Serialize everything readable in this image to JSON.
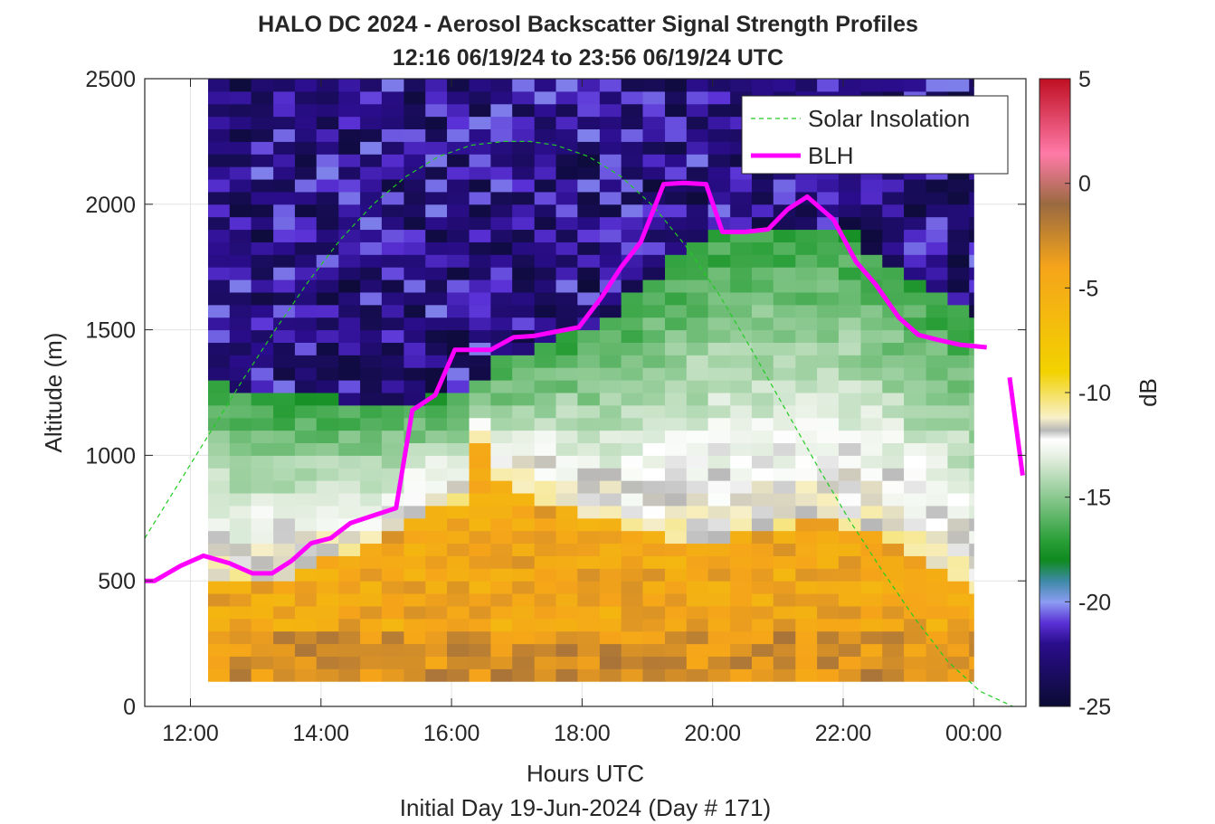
{
  "chart_data": {
    "type": "heatmap",
    "title": "HALO DC 2024 - Aerosol Backscatter Signal Strength Profiles",
    "subtitle": "12:16 06/19/24 to 23:56 06/19/24  UTC",
    "xlabel": "Hours UTC",
    "footer": "Initial Day 19-Jun-2024 (Day # 171)",
    "ylabel": "Altitude (m)",
    "colorbar_label": "dB",
    "xlim": [
      11.3,
      24.8
    ],
    "ylim": [
      0,
      2500
    ],
    "x_ticks": [
      12,
      14,
      16,
      18,
      20,
      22,
      24
    ],
    "x_tick_labels": [
      "12:00",
      "14:00",
      "16:00",
      "18:00",
      "20:00",
      "22:00",
      "00:00"
    ],
    "y_ticks": [
      0,
      500,
      1000,
      1500,
      2000,
      2500
    ],
    "y_tick_labels": [
      "0",
      "500",
      "1000",
      "1500",
      "2000",
      "2500"
    ],
    "clim": [
      -25,
      5
    ],
    "colorbar_ticks": [
      5,
      0,
      -5,
      -10,
      -15,
      -20,
      -25
    ],
    "colorbar_tick_labels": [
      "5",
      "0",
      "-5",
      "-10",
      "-15",
      "-20",
      "-25"
    ],
    "grid": true,
    "legend_position": "top-right",
    "legend": [
      {
        "label": "Solar Insolation",
        "color": "#22cc22",
        "style": "dashed"
      },
      {
        "label": "BLH",
        "color": "#ff00ff",
        "style": "solid"
      }
    ],
    "backscatter_profiles": {
      "x_start": 12.27,
      "x_end": 24.0,
      "y_start": 100,
      "y_end": 2500,
      "columns": [
        {
          "x": 12.27,
          "blh": 500,
          "top": 1300
        },
        {
          "x": 12.6,
          "blh": 480,
          "top": 1270
        },
        {
          "x": 12.93,
          "blh": 500,
          "top": 1240
        },
        {
          "x": 13.27,
          "blh": 520,
          "top": 1240
        },
        {
          "x": 13.6,
          "blh": 560,
          "top": 1230
        },
        {
          "x": 13.93,
          "blh": 590,
          "top": 1230
        },
        {
          "x": 14.27,
          "blh": 620,
          "top": 1220
        },
        {
          "x": 14.6,
          "blh": 650,
          "top": 1220
        },
        {
          "x": 14.93,
          "blh": 700,
          "top": 1220
        },
        {
          "x": 15.27,
          "blh": 760,
          "top": 1220
        },
        {
          "x": 15.6,
          "blh": 800,
          "top": 1230
        },
        {
          "x": 15.93,
          "blh": 820,
          "top": 1250
        },
        {
          "x": 16.27,
          "blh": 1050,
          "top": 1320
        },
        {
          "x": 16.6,
          "blh": 880,
          "top": 1380
        },
        {
          "x": 16.93,
          "blh": 860,
          "top": 1420
        },
        {
          "x": 17.27,
          "blh": 820,
          "top": 1460
        },
        {
          "x": 17.6,
          "blh": 800,
          "top": 1480
        },
        {
          "x": 17.93,
          "blh": 760,
          "top": 1500
        },
        {
          "x": 18.27,
          "blh": 730,
          "top": 1560
        },
        {
          "x": 18.6,
          "blh": 700,
          "top": 1640
        },
        {
          "x": 18.93,
          "blh": 680,
          "top": 1720
        },
        {
          "x": 19.27,
          "blh": 670,
          "top": 1800
        },
        {
          "x": 19.6,
          "blh": 660,
          "top": 1850
        },
        {
          "x": 19.93,
          "blh": 660,
          "top": 1890
        },
        {
          "x": 20.27,
          "blh": 680,
          "top": 1900
        },
        {
          "x": 20.6,
          "blh": 700,
          "top": 1900
        },
        {
          "x": 20.93,
          "blh": 720,
          "top": 1900
        },
        {
          "x": 21.27,
          "blh": 730,
          "top": 1900
        },
        {
          "x": 21.6,
          "blh": 740,
          "top": 1900
        },
        {
          "x": 21.93,
          "blh": 720,
          "top": 1880
        },
        {
          "x": 22.27,
          "blh": 700,
          "top": 1820
        },
        {
          "x": 22.6,
          "blh": 660,
          "top": 1750
        },
        {
          "x": 22.93,
          "blh": 600,
          "top": 1700
        },
        {
          "x": 23.27,
          "blh": 540,
          "top": 1650
        },
        {
          "x": 23.6,
          "blh": 480,
          "top": 1600
        },
        {
          "x": 23.93,
          "blh": 430,
          "top": 1560
        }
      ]
    },
    "series": [
      {
        "name": "Solar Insolation",
        "type": "line",
        "x": [
          11.3,
          11.8,
          12.3,
          12.8,
          13.3,
          13.8,
          14.3,
          14.8,
          15.3,
          15.8,
          16.3,
          16.8,
          17.2,
          17.6,
          18.1,
          18.6,
          19.1,
          19.6,
          20.1,
          20.6,
          21.1,
          21.6,
          22.1,
          22.6,
          23.1,
          23.6,
          24.1,
          24.6
        ],
        "y": [
          670,
          880,
          1090,
          1300,
          1500,
          1690,
          1860,
          2000,
          2110,
          2190,
          2235,
          2250,
          2250,
          2235,
          2190,
          2110,
          1990,
          1830,
          1640,
          1420,
          1190,
          960,
          740,
          540,
          350,
          180,
          60,
          0
        ]
      },
      {
        "name": "BLH",
        "type": "line",
        "segments": [
          {
            "x": [
              11.3,
              11.45,
              11.85,
              12.2,
              12.6,
              12.95,
              13.25,
              13.55,
              13.85,
              14.15,
              14.45,
              14.8,
              15.15,
              15.4,
              15.75,
              16.05,
              16.3,
              16.6,
              16.95,
              17.25,
              17.55,
              17.95,
              18.3,
              18.6,
              18.9,
              19.25,
              19.55,
              19.9,
              20.15,
              20.5,
              20.85,
              21.15,
              21.45,
              21.85,
              22.2,
              22.5,
              22.85,
              23.15,
              23.45,
              23.8,
              24.2
            ],
            "y": [
              500,
              500,
              560,
              600,
              570,
              530,
              530,
              580,
              650,
              670,
              730,
              760,
              790,
              1180,
              1240,
              1420,
              1420,
              1420,
              1470,
              1475,
              1490,
              1510,
              1630,
              1750,
              1850,
              2080,
              2085,
              2080,
              1890,
              1890,
              1900,
              1980,
              2030,
              1940,
              1770,
              1680,
              1550,
              1480,
              1460,
              1440,
              1430
            ]
          },
          {
            "x": [
              24.55,
              24.75
            ],
            "y": [
              1310,
              920
            ]
          }
        ]
      }
    ]
  }
}
